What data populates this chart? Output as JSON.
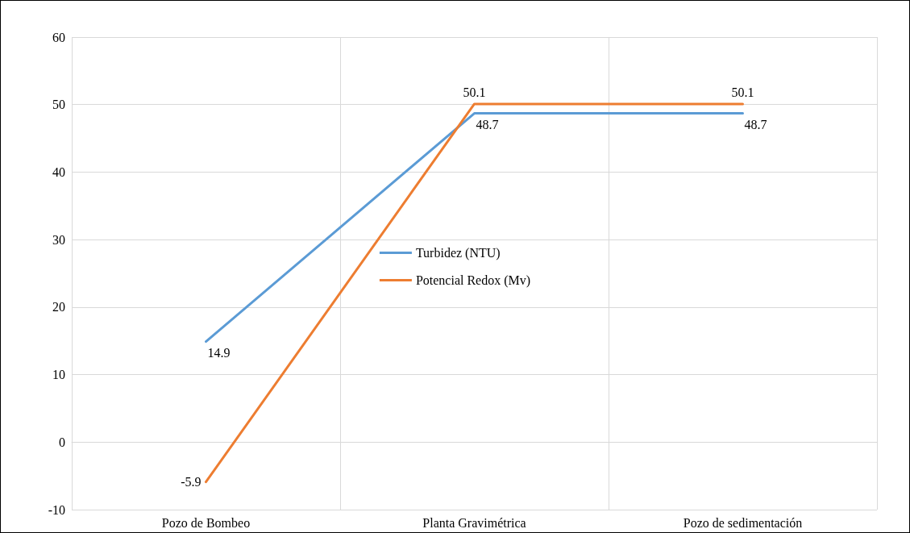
{
  "chart_data": {
    "type": "line",
    "categories": [
      "Pozo de Bombeo",
      "Planta Gravimétrica",
      "Pozo de sedimentación"
    ],
    "series": [
      {
        "name": "Turbidez (NTU)",
        "color": "#5b9bd5",
        "values": [
          14.9,
          48.7,
          48.7
        ]
      },
      {
        "name": "Potencial Redox (Mv)",
        "color": "#ed7d31",
        "values": [
          -5.9,
          50.1,
          50.1
        ]
      }
    ],
    "ylim": [
      -10,
      60
    ],
    "yticks": [
      -10,
      0,
      10,
      20,
      30,
      40,
      50,
      60
    ],
    "grid": true,
    "legend": "center",
    "marker": "none",
    "line_style": "solid",
    "data_labels": true
  }
}
